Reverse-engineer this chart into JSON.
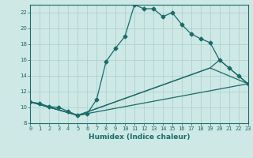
{
  "xlabel": "Humidex (Indice chaleur)",
  "bg_color": "#cde8e5",
  "line_color": "#1a6b6b",
  "grid_color": "#a8cece",
  "series1_x": [
    0,
    1,
    2,
    3,
    4,
    5,
    6,
    7,
    8,
    9,
    10,
    11,
    12,
    13,
    14,
    15,
    16,
    17,
    18,
    19,
    20,
    21,
    22,
    23
  ],
  "series1_y": [
    10.7,
    10.5,
    10.1,
    10.0,
    9.5,
    9.0,
    9.2,
    11.0,
    15.8,
    17.5,
    19.0,
    23.0,
    22.5,
    22.5,
    21.5,
    22.0,
    20.5,
    19.3,
    18.7,
    18.2,
    16.0,
    15.0,
    14.0,
    13.0
  ],
  "series2_x": [
    0,
    5,
    23
  ],
  "series2_y": [
    10.7,
    9.0,
    13.0
  ],
  "series3_x": [
    0,
    5,
    19,
    22,
    23
  ],
  "series3_y": [
    10.7,
    9.0,
    15.0,
    13.5,
    13.0
  ],
  "series4_x": [
    0,
    5,
    19,
    20,
    22,
    23
  ],
  "series4_y": [
    10.7,
    9.0,
    15.0,
    16.0,
    14.0,
    13.0
  ],
  "xlim": [
    0,
    23
  ],
  "ylim": [
    8,
    23
  ],
  "xticks": [
    0,
    1,
    2,
    3,
    4,
    5,
    6,
    7,
    8,
    9,
    10,
    11,
    12,
    13,
    14,
    15,
    16,
    17,
    18,
    19,
    20,
    21,
    22,
    23
  ],
  "yticks": [
    8,
    10,
    12,
    14,
    16,
    18,
    20,
    22
  ],
  "xlabel_fontsize": 6.5,
  "tick_fontsize": 5.0
}
